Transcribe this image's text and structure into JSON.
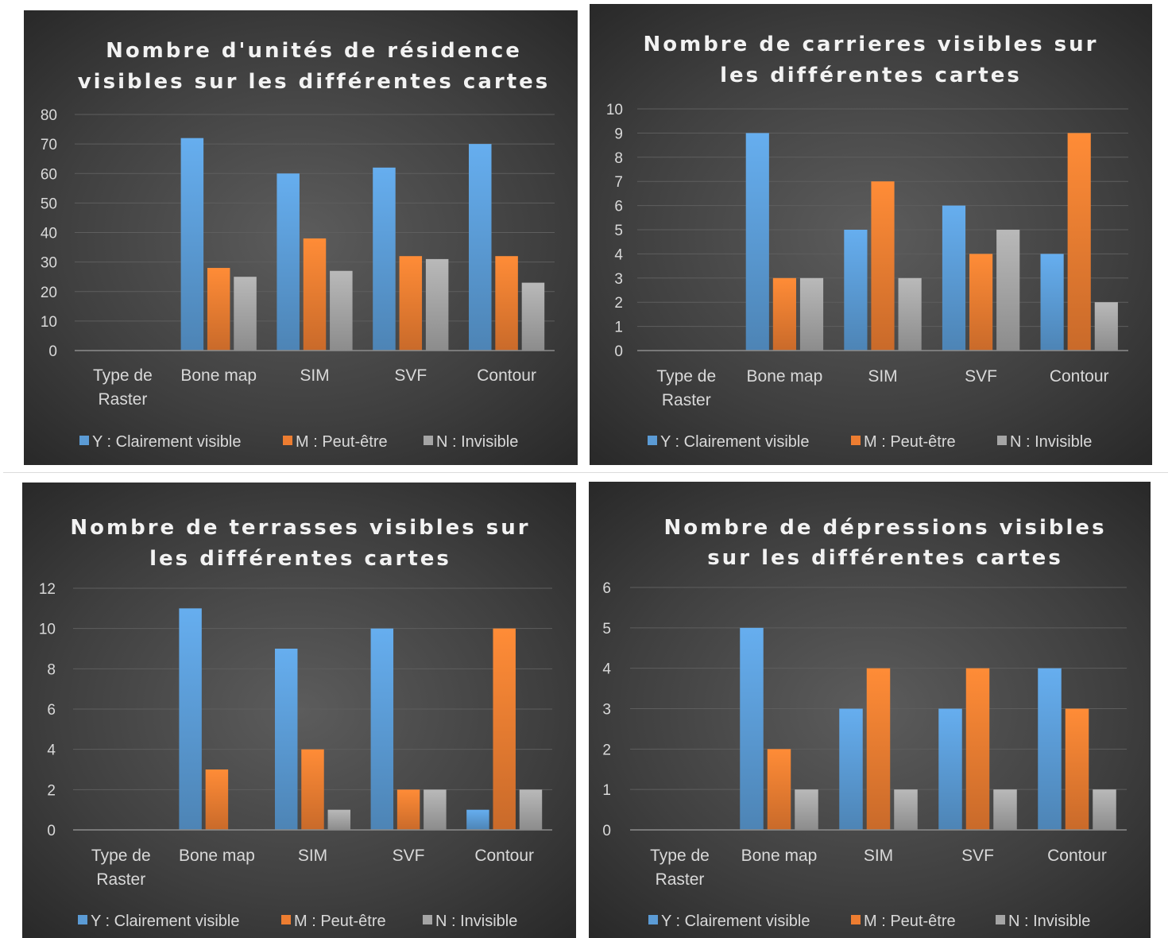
{
  "chart_data": [
    {
      "type": "bar",
      "title_lines": [
        "Nombre d'unités de résidence",
        "visibles sur les différentes cartes"
      ],
      "categories": [
        [
          "Type de",
          "Raster"
        ],
        [
          "Bone map"
        ],
        [
          "SIM"
        ],
        [
          "SVF"
        ],
        [
          "Contour"
        ]
      ],
      "series": [
        {
          "name": "Y : Clairement visible",
          "values": [
            null,
            72,
            60,
            62,
            70
          ]
        },
        {
          "name": "M : Peut-être",
          "values": [
            null,
            28,
            38,
            32,
            32
          ]
        },
        {
          "name": "N : Invisible",
          "values": [
            null,
            25,
            27,
            31,
            23
          ]
        }
      ],
      "ylim": [
        0,
        80
      ],
      "yticks": [
        0,
        10,
        20,
        30,
        40,
        50,
        60,
        70,
        80
      ],
      "grid": true,
      "legend": "bottom"
    },
    {
      "type": "bar",
      "title_lines": [
        "Nombre de carrieres visibles sur",
        "les différentes cartes"
      ],
      "categories": [
        [
          "Type de",
          "Raster"
        ],
        [
          "Bone map"
        ],
        [
          "SIM"
        ],
        [
          "SVF"
        ],
        [
          "Contour"
        ]
      ],
      "series": [
        {
          "name": "Y : Clairement visible",
          "values": [
            null,
            9,
            5,
            6,
            4
          ]
        },
        {
          "name": "M : Peut-être",
          "values": [
            null,
            3,
            7,
            4,
            9
          ]
        },
        {
          "name": "N : Invisible",
          "values": [
            null,
            3,
            3,
            5,
            2
          ]
        }
      ],
      "ylim": [
        0,
        10
      ],
      "yticks": [
        0,
        1,
        2,
        3,
        4,
        5,
        6,
        7,
        8,
        9,
        10
      ],
      "grid": true,
      "legend": "bottom"
    },
    {
      "type": "bar",
      "title_lines": [
        "Nombre de terrasses visibles sur",
        "les différentes cartes"
      ],
      "categories": [
        [
          "Type de",
          "Raster"
        ],
        [
          "Bone map"
        ],
        [
          "SIM"
        ],
        [
          "SVF"
        ],
        [
          "Contour"
        ]
      ],
      "series": [
        {
          "name": "Y : Clairement visible",
          "values": [
            null,
            11,
            9,
            10,
            1
          ]
        },
        {
          "name": "M : Peut-être",
          "values": [
            null,
            3,
            4,
            2,
            10
          ]
        },
        {
          "name": "N : Invisible",
          "values": [
            null,
            0,
            1,
            2,
            2
          ]
        }
      ],
      "ylim": [
        0,
        12
      ],
      "yticks": [
        0,
        2,
        4,
        6,
        8,
        10,
        12
      ],
      "grid": true,
      "legend": "bottom"
    },
    {
      "type": "bar",
      "title_lines": [
        "Nombre de dépressions visibles",
        "sur les différentes cartes"
      ],
      "categories": [
        [
          "Type de",
          "Raster"
        ],
        [
          "Bone map"
        ],
        [
          "SIM"
        ],
        [
          "SVF"
        ],
        [
          "Contour"
        ]
      ],
      "series": [
        {
          "name": "Y : Clairement visible",
          "values": [
            null,
            5,
            3,
            3,
            4
          ]
        },
        {
          "name": "M : Peut-être",
          "values": [
            null,
            2,
            4,
            4,
            3
          ]
        },
        {
          "name": "N : Invisible",
          "values": [
            null,
            1,
            1,
            1,
            1
          ]
        }
      ],
      "ylim": [
        0,
        6
      ],
      "yticks": [
        0,
        1,
        2,
        3,
        4,
        5,
        6
      ],
      "grid": true,
      "legend": "bottom"
    }
  ],
  "colors": {
    "Y": "#5b9bd5",
    "M": "#ed7d31",
    "N": "#a5a5a5",
    "grid": "#5e5e5e",
    "axis": "#8c8c8c",
    "text": "#d9d9d9",
    "title": "#f2f2f2"
  }
}
